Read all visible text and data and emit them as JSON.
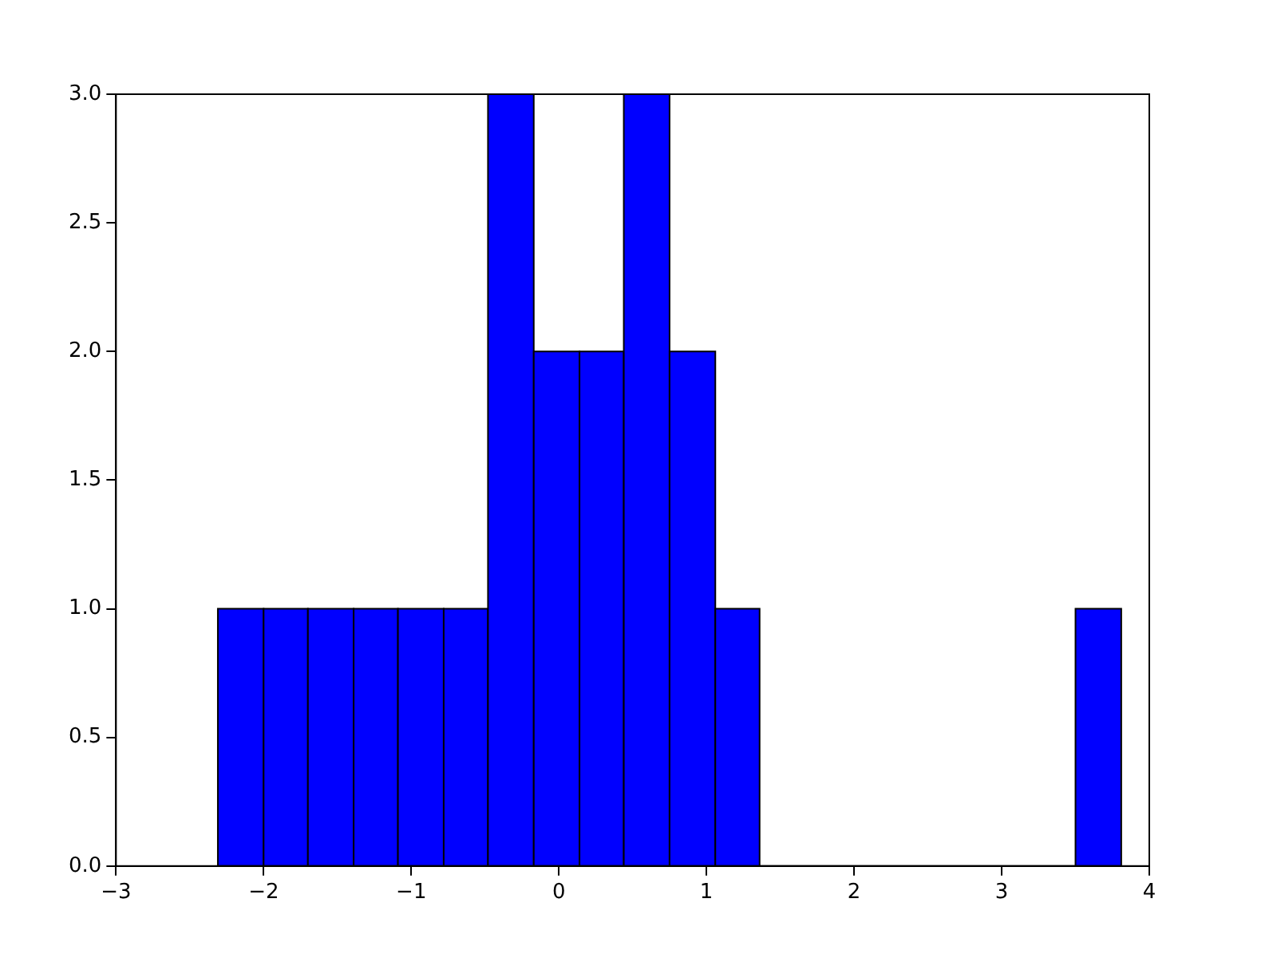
{
  "chart_data": {
    "type": "histogram",
    "bins": [
      -2.31,
      -2.0,
      -1.7,
      -1.39,
      -1.09,
      -0.78,
      -0.48,
      -0.17,
      0.14,
      0.44,
      0.75,
      1.06,
      1.36,
      3.5,
      3.81
    ],
    "values": [
      1,
      1,
      1,
      1,
      1,
      1,
      3,
      2,
      2,
      3,
      2,
      1,
      0,
      1
    ],
    "color": "#0000ff",
    "xlim": [
      -3,
      4
    ],
    "xticks": [
      -3,
      -2,
      -1,
      0,
      1,
      2,
      3,
      4
    ],
    "ylim": [
      0,
      3
    ],
    "yticks": [
      {
        "value": 0,
        "label": "0.0"
      },
      0.5,
      {
        "value": 1,
        "label": "1.0"
      },
      1.5,
      {
        "value": 2,
        "label": "2.0"
      },
      2.5,
      {
        "value": 3,
        "label": "3.0"
      }
    ],
    "grid": false,
    "legend": false
  }
}
